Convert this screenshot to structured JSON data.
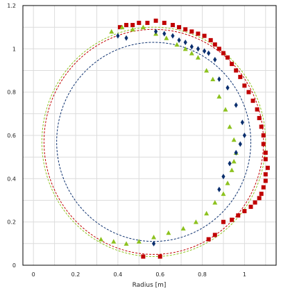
{
  "chart_data": {
    "type": "scatter",
    "xlabel": "Radius [m]",
    "ylabel": "",
    "xlim": [
      -0.05,
      1.15
    ],
    "ylim": [
      0,
      1.2
    ],
    "xticks": [
      "0",
      "0.2",
      "0.4",
      "0.6",
      "0.8",
      "1"
    ],
    "yticks": [
      "0",
      "0.2",
      "0.4",
      "0.6",
      "0.8",
      "1",
      "1.2"
    ],
    "xtick_values": [
      0,
      0.2,
      0.4,
      0.6,
      0.8,
      1.0
    ],
    "ytick_values": [
      0,
      0.2,
      0.4,
      0.6,
      0.8,
      1.0,
      1.2
    ],
    "grid": true,
    "legend": "none",
    "series": [
      {
        "marker": "square",
        "color": "#c00000",
        "x": [
          0.41,
          0.44,
          0.47,
          0.5,
          0.54,
          0.58,
          0.62,
          0.66,
          0.69,
          0.72,
          0.75,
          0.78,
          0.81,
          0.84,
          0.86,
          0.88,
          0.9,
          0.92,
          0.94,
          0.96,
          0.98,
          1.0,
          1.02,
          1.04,
          1.06,
          1.07,
          1.08,
          1.09,
          1.09,
          1.1,
          1.1,
          1.11,
          1.1,
          1.1,
          1.09,
          1.08,
          1.07,
          1.05,
          1.03,
          1.0,
          0.97,
          0.94,
          0.9,
          0.86,
          0.83,
          0.52,
          0.6
        ],
        "y": [
          1.1,
          1.11,
          1.11,
          1.12,
          1.12,
          1.13,
          1.12,
          1.11,
          1.1,
          1.09,
          1.08,
          1.07,
          1.06,
          1.04,
          1.02,
          1.0,
          0.98,
          0.96,
          0.93,
          0.9,
          0.87,
          0.83,
          0.8,
          0.76,
          0.72,
          0.68,
          0.64,
          0.6,
          0.56,
          0.52,
          0.49,
          0.45,
          0.42,
          0.39,
          0.36,
          0.33,
          0.31,
          0.29,
          0.27,
          0.25,
          0.23,
          0.21,
          0.2,
          0.14,
          0.12,
          0.04,
          0.04
        ]
      },
      {
        "marker": "triangle",
        "color": "#8dc21f",
        "x": [
          0.37,
          0.42,
          0.47,
          0.52,
          0.58,
          0.63,
          0.68,
          0.72,
          0.75,
          0.78,
          0.82,
          0.85,
          0.88,
          0.91,
          0.93,
          0.95,
          0.96,
          0.95,
          0.94,
          0.92,
          0.9,
          0.86,
          0.82,
          0.77,
          0.71,
          0.64,
          0.57,
          0.5,
          0.44,
          0.38,
          0.32
        ],
        "y": [
          1.08,
          1.1,
          1.09,
          1.1,
          1.07,
          1.05,
          1.02,
          1.0,
          0.98,
          0.96,
          0.9,
          0.86,
          0.78,
          0.72,
          0.64,
          0.58,
          0.52,
          0.48,
          0.44,
          0.38,
          0.33,
          0.29,
          0.24,
          0.2,
          0.17,
          0.15,
          0.13,
          0.11,
          0.1,
          0.11,
          0.12
        ]
      },
      {
        "marker": "diamond",
        "color": "#0b2f6e",
        "x": [
          0.4,
          0.44,
          0.58,
          0.62,
          0.66,
          0.69,
          0.72,
          0.75,
          0.78,
          0.81,
          0.83,
          0.86,
          0.88,
          0.92,
          0.96,
          0.99,
          1.0,
          0.98,
          0.96,
          0.93,
          0.9,
          0.88,
          0.57
        ],
        "y": [
          1.06,
          1.05,
          1.08,
          1.07,
          1.06,
          1.04,
          1.03,
          1.01,
          1.0,
          0.99,
          0.98,
          0.95,
          0.86,
          0.82,
          0.74,
          0.66,
          0.6,
          0.56,
          0.52,
          0.47,
          0.41,
          0.35,
          0.1
        ]
      }
    ],
    "circles": [
      {
        "cx": 0.57,
        "cy": 0.57,
        "r": 0.53,
        "color": "#8dc21f"
      },
      {
        "cx": 0.57,
        "cy": 0.57,
        "r": 0.52,
        "color": "#c00000"
      },
      {
        "cx": 0.57,
        "cy": 0.57,
        "r": 0.46,
        "color": "#0b2f6e"
      }
    ]
  }
}
